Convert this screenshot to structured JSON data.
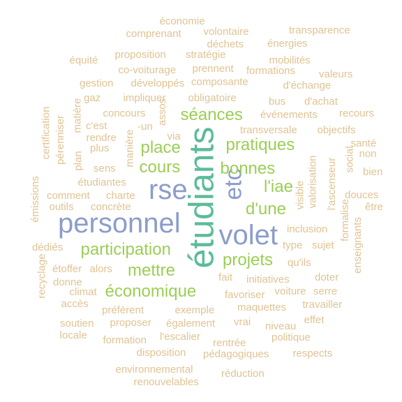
{
  "colors": {
    "tan": "#e0c393",
    "green": "#9bce55",
    "blue": "#8c9dcb",
    "teal": "#5cbc98"
  },
  "words": [
    {
      "text": "étudiants",
      "tier": 5,
      "color": "teal",
      "vertical": true
    },
    {
      "text": "personnel",
      "tier": 5,
      "color": "blue",
      "vertical": false
    },
    {
      "text": "volet",
      "tier": 5,
      "color": "blue",
      "vertical": false
    },
    {
      "text": "rse",
      "tier": 5,
      "color": "blue",
      "vertical": false
    },
    {
      "text": "etc",
      "tier": 4,
      "color": "blue",
      "vertical": true
    },
    {
      "text": "participation",
      "tier": 3,
      "color": "green",
      "vertical": false
    },
    {
      "text": "économique",
      "tier": 3,
      "color": "green",
      "vertical": false
    },
    {
      "text": "pratiques",
      "tier": 3,
      "color": "green",
      "vertical": false
    },
    {
      "text": "bonnes",
      "tier": 3,
      "color": "green",
      "vertical": false
    },
    {
      "text": "séances",
      "tier": 3,
      "color": "green",
      "vertical": false
    },
    {
      "text": "place",
      "tier": 3,
      "color": "green",
      "vertical": false
    },
    {
      "text": "cours",
      "tier": 3,
      "color": "green",
      "vertical": false
    },
    {
      "text": "mettre",
      "tier": 3,
      "color": "green",
      "vertical": false
    },
    {
      "text": "projets",
      "tier": 3,
      "color": "green",
      "vertical": false
    },
    {
      "text": "l'iae",
      "tier": 3,
      "color": "green",
      "vertical": false
    },
    {
      "text": "d'une",
      "tier": 3,
      "color": "green",
      "vertical": false
    },
    {
      "text": "économie",
      "tier": 1,
      "color": "tan",
      "vertical": false
    },
    {
      "text": "comprenant",
      "tier": 1,
      "color": "tan",
      "vertical": false
    },
    {
      "text": "volontaire",
      "tier": 1,
      "color": "tan",
      "vertical": false
    },
    {
      "text": "transparence",
      "tier": 1,
      "color": "tan",
      "vertical": false
    },
    {
      "text": "déchets",
      "tier": 1,
      "color": "tan",
      "vertical": false
    },
    {
      "text": "énergies",
      "tier": 1,
      "color": "tan",
      "vertical": false
    },
    {
      "text": "proposition",
      "tier": 1,
      "color": "tan",
      "vertical": false
    },
    {
      "text": "stratégie",
      "tier": 1,
      "color": "tan",
      "vertical": false
    },
    {
      "text": "équité",
      "tier": 1,
      "color": "tan",
      "vertical": false
    },
    {
      "text": "mobilités",
      "tier": 1,
      "color": "tan",
      "vertical": false
    },
    {
      "text": "co-voiturage",
      "tier": 1,
      "color": "tan",
      "vertical": false
    },
    {
      "text": "prennent",
      "tier": 1,
      "color": "tan",
      "vertical": false
    },
    {
      "text": "formations",
      "tier": 1,
      "color": "tan",
      "vertical": false
    },
    {
      "text": "valeurs",
      "tier": 1,
      "color": "tan",
      "vertical": false
    },
    {
      "text": "gestion",
      "tier": 1,
      "color": "tan",
      "vertical": false
    },
    {
      "text": "développés",
      "tier": 1,
      "color": "tan",
      "vertical": false
    },
    {
      "text": "composante",
      "tier": 1,
      "color": "tan",
      "vertical": false
    },
    {
      "text": "d'échange",
      "tier": 1,
      "color": "tan",
      "vertical": false
    },
    {
      "text": "gaz",
      "tier": 1,
      "color": "tan",
      "vertical": false
    },
    {
      "text": "impliquer",
      "tier": 1,
      "color": "tan",
      "vertical": false
    },
    {
      "text": "obligatoire",
      "tier": 1,
      "color": "tan",
      "vertical": false
    },
    {
      "text": "bus",
      "tier": 1,
      "color": "tan",
      "vertical": false
    },
    {
      "text": "d'achat",
      "tier": 1,
      "color": "tan",
      "vertical": false
    },
    {
      "text": "certification",
      "tier": 1,
      "color": "tan",
      "vertical": true
    },
    {
      "text": "pérenniser",
      "tier": 1,
      "color": "tan",
      "vertical": true
    },
    {
      "text": "matière",
      "tier": 1,
      "color": "tan",
      "vertical": true
    },
    {
      "text": "concours",
      "tier": 1,
      "color": "tan",
      "vertical": false
    },
    {
      "text": "assos",
      "tier": 1,
      "color": "tan",
      "vertical": true
    },
    {
      "text": "événements",
      "tier": 1,
      "color": "tan",
      "vertical": false
    },
    {
      "text": "recours",
      "tier": 1,
      "color": "tan",
      "vertical": false
    },
    {
      "text": "c'est",
      "tier": 1,
      "color": "tan",
      "vertical": false
    },
    {
      "text": "-un",
      "tier": 1,
      "color": "tan",
      "vertical": false
    },
    {
      "text": "transversale",
      "tier": 1,
      "color": "tan",
      "vertical": false
    },
    {
      "text": "objectifs",
      "tier": 1,
      "color": "tan",
      "vertical": false
    },
    {
      "text": "rendre",
      "tier": 1,
      "color": "tan",
      "vertical": false
    },
    {
      "text": "santé",
      "tier": 1,
      "color": "tan",
      "vertical": false
    },
    {
      "text": "plan",
      "tier": 1,
      "color": "tan",
      "vertical": true
    },
    {
      "text": "plus",
      "tier": 1,
      "color": "tan",
      "vertical": false
    },
    {
      "text": "via",
      "tier": 1,
      "color": "tan",
      "vertical": false
    },
    {
      "text": "manière",
      "tier": 1,
      "color": "tan",
      "vertical": true
    },
    {
      "text": "non",
      "tier": 1,
      "color": "tan",
      "vertical": false
    },
    {
      "text": "social",
      "tier": 1,
      "color": "tan",
      "vertical": true
    },
    {
      "text": "l'ascenseur",
      "tier": 1,
      "color": "tan",
      "vertical": true
    },
    {
      "text": "sens",
      "tier": 1,
      "color": "tan",
      "vertical": false
    },
    {
      "text": "bien",
      "tier": 1,
      "color": "tan",
      "vertical": false
    },
    {
      "text": "émissions",
      "tier": 1,
      "color": "tan",
      "vertical": true
    },
    {
      "text": "étudiantes",
      "tier": 1,
      "color": "tan",
      "vertical": false
    },
    {
      "text": "valorisation",
      "tier": 1,
      "color": "tan",
      "vertical": true
    },
    {
      "text": "comment",
      "tier": 1,
      "color": "tan",
      "vertical": false
    },
    {
      "text": "charte",
      "tier": 1,
      "color": "tan",
      "vertical": false
    },
    {
      "text": "visible",
      "tier": 1,
      "color": "tan",
      "vertical": true
    },
    {
      "text": "douces",
      "tier": 1,
      "color": "tan",
      "vertical": false
    },
    {
      "text": "outils",
      "tier": 1,
      "color": "tan",
      "vertical": false
    },
    {
      "text": "concrète",
      "tier": 1,
      "color": "tan",
      "vertical": false
    },
    {
      "text": "être",
      "tier": 1,
      "color": "tan",
      "vertical": false
    },
    {
      "text": "formalise",
      "tier": 1,
      "color": "tan",
      "vertical": true
    },
    {
      "text": "inclusion",
      "tier": 1,
      "color": "tan",
      "vertical": false
    },
    {
      "text": "enseignants",
      "tier": 1,
      "color": "tan",
      "vertical": true
    },
    {
      "text": "dédiés",
      "tier": 1,
      "color": "tan",
      "vertical": false
    },
    {
      "text": "type",
      "tier": 1,
      "color": "tan",
      "vertical": false
    },
    {
      "text": "sujet",
      "tier": 1,
      "color": "tan",
      "vertical": false
    },
    {
      "text": "qu'ils",
      "tier": 1,
      "color": "tan",
      "vertical": false
    },
    {
      "text": "recyclage",
      "tier": 1,
      "color": "tan",
      "vertical": true
    },
    {
      "text": "étoffer",
      "tier": 1,
      "color": "tan",
      "vertical": false
    },
    {
      "text": "alors",
      "tier": 1,
      "color": "tan",
      "vertical": false
    },
    {
      "text": "donne",
      "tier": 1,
      "color": "tan",
      "vertical": false
    },
    {
      "text": "fait",
      "tier": 1,
      "color": "tan",
      "vertical": false
    },
    {
      "text": "initiatives",
      "tier": 1,
      "color": "tan",
      "vertical": false
    },
    {
      "text": "doter",
      "tier": 1,
      "color": "tan",
      "vertical": false
    },
    {
      "text": "climat",
      "tier": 1,
      "color": "tan",
      "vertical": false
    },
    {
      "text": "favoriser",
      "tier": 1,
      "color": "tan",
      "vertical": false
    },
    {
      "text": "voiture",
      "tier": 1,
      "color": "tan",
      "vertical": false
    },
    {
      "text": "serre",
      "tier": 1,
      "color": "tan",
      "vertical": false
    },
    {
      "text": "accès",
      "tier": 1,
      "color": "tan",
      "vertical": false
    },
    {
      "text": "maquettes",
      "tier": 1,
      "color": "tan",
      "vertical": false
    },
    {
      "text": "travailler",
      "tier": 1,
      "color": "tan",
      "vertical": false
    },
    {
      "text": "préfèrent",
      "tier": 1,
      "color": "tan",
      "vertical": false
    },
    {
      "text": "exemple",
      "tier": 1,
      "color": "tan",
      "vertical": false
    },
    {
      "text": "effet",
      "tier": 1,
      "color": "tan",
      "vertical": false
    },
    {
      "text": "soutien",
      "tier": 1,
      "color": "tan",
      "vertical": false
    },
    {
      "text": "proposer",
      "tier": 1,
      "color": "tan",
      "vertical": false
    },
    {
      "text": "également",
      "tier": 1,
      "color": "tan",
      "vertical": false
    },
    {
      "text": "vrai",
      "tier": 1,
      "color": "tan",
      "vertical": false
    },
    {
      "text": "niveau",
      "tier": 1,
      "color": "tan",
      "vertical": false
    },
    {
      "text": "locale",
      "tier": 1,
      "color": "tan",
      "vertical": false
    },
    {
      "text": "l'escalier",
      "tier": 1,
      "color": "tan",
      "vertical": false
    },
    {
      "text": "politique",
      "tier": 1,
      "color": "tan",
      "vertical": false
    },
    {
      "text": "formation",
      "tier": 1,
      "color": "tan",
      "vertical": false
    },
    {
      "text": "rentrée",
      "tier": 1,
      "color": "tan",
      "vertical": false
    },
    {
      "text": "disposition",
      "tier": 1,
      "color": "tan",
      "vertical": false
    },
    {
      "text": "pédagogiques",
      "tier": 1,
      "color": "tan",
      "vertical": false
    },
    {
      "text": "respects",
      "tier": 1,
      "color": "tan",
      "vertical": false
    },
    {
      "text": "environnemental",
      "tier": 1,
      "color": "tan",
      "vertical": false
    },
    {
      "text": "réduction",
      "tier": 1,
      "color": "tan",
      "vertical": false
    },
    {
      "text": "renouvelables",
      "tier": 1,
      "color": "tan",
      "vertical": false
    }
  ]
}
